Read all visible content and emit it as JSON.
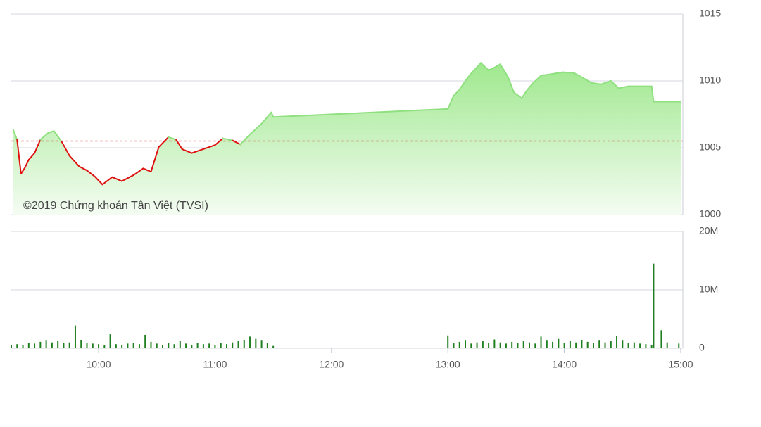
{
  "chart_data": [
    {
      "type": "line",
      "annotation": "©2019 Chứng khoán Tân Việt (TVSI)",
      "x": [
        "09:16",
        "09:18",
        "09:20",
        "09:22",
        "09:24",
        "09:27",
        "09:30",
        "09:34",
        "09:37",
        "09:41",
        "09:45",
        "09:50",
        "09:54",
        "09:58",
        "10:02",
        "10:07",
        "10:12",
        "10:18",
        "10:23",
        "10:27",
        "10:31",
        "10:36",
        "10:40",
        "10:43",
        "10:48",
        "10:55",
        "11:00",
        "11:04",
        "11:09",
        "11:13",
        "11:18",
        "11:24",
        "11:29",
        "11:30",
        "13:00",
        "13:03",
        "13:06",
        "13:10",
        "13:12",
        "13:17",
        "13:21",
        "13:24",
        "13:27",
        "13:31",
        "13:34",
        "13:38",
        "13:41",
        "13:44",
        "13:48",
        "13:53",
        "13:59",
        "14:05",
        "14:10",
        "14:14",
        "14:19",
        "14:24",
        "14:28",
        "14:33",
        "14:45",
        "14:46",
        "15:00"
      ],
      "values": [
        1006.35,
        1005.6,
        1003.05,
        1003.5,
        1004.1,
        1004.6,
        1005.6,
        1006.1,
        1006.25,
        1005.45,
        1004.4,
        1003.6,
        1003.3,
        1002.85,
        1002.25,
        1002.8,
        1002.5,
        1002.95,
        1003.45,
        1003.2,
        1005.05,
        1005.8,
        1005.6,
        1004.9,
        1004.6,
        1004.95,
        1005.2,
        1005.7,
        1005.55,
        1005.25,
        1006.0,
        1006.8,
        1007.65,
        1007.3,
        1007.9,
        1008.9,
        1009.35,
        1010.2,
        1010.55,
        1011.35,
        1010.8,
        1011.0,
        1011.25,
        1010.3,
        1009.15,
        1008.7,
        1009.35,
        1009.85,
        1010.4,
        1010.5,
        1010.65,
        1010.6,
        1010.2,
        1009.85,
        1009.75,
        1010.0,
        1009.45,
        1009.6,
        1009.6,
        1008.45,
        1008.45
      ],
      "reference": 1005.5,
      "reference_color": "#d11a1a",
      "up_color": "#8fe07f",
      "down_color": "#e01010",
      "xlim": [
        "09:15",
        "15:00"
      ],
      "ylim": [
        1000,
        1015
      ],
      "yticks": [
        1000,
        1005,
        1010,
        1015
      ],
      "grid": true
    },
    {
      "type": "bar",
      "x": [
        "09:15",
        "09:18",
        "09:21",
        "09:24",
        "09:27",
        "09:30",
        "09:33",
        "09:36",
        "09:39",
        "09:42",
        "09:45",
        "09:48",
        "09:51",
        "09:54",
        "09:57",
        "10:00",
        "10:03",
        "10:06",
        "10:09",
        "10:12",
        "10:15",
        "10:18",
        "10:21",
        "10:24",
        "10:27",
        "10:30",
        "10:33",
        "10:36",
        "10:39",
        "10:42",
        "10:45",
        "10:48",
        "10:51",
        "10:54",
        "10:57",
        "11:00",
        "11:03",
        "11:06",
        "11:09",
        "11:12",
        "11:15",
        "11:18",
        "11:21",
        "11:24",
        "11:27",
        "11:30",
        "13:00",
        "13:03",
        "13:06",
        "13:09",
        "13:12",
        "13:15",
        "13:18",
        "13:21",
        "13:24",
        "13:27",
        "13:30",
        "13:33",
        "13:36",
        "13:39",
        "13:42",
        "13:45",
        "13:48",
        "13:51",
        "13:54",
        "13:57",
        "14:00",
        "14:03",
        "14:06",
        "14:09",
        "14:12",
        "14:15",
        "14:18",
        "14:21",
        "14:24",
        "14:27",
        "14:30",
        "14:33",
        "14:36",
        "14:39",
        "14:42",
        "14:45",
        "14:46",
        "14:50",
        "14:53",
        "14:59"
      ],
      "values": [
        500000,
        700000,
        600000,
        900000,
        800000,
        1100000,
        1300000,
        1000000,
        1200000,
        900000,
        1000000,
        3900000,
        1400000,
        900000,
        800000,
        700000,
        600000,
        2400000,
        700000,
        600000,
        800000,
        900000,
        700000,
        2300000,
        1100000,
        800000,
        600000,
        900000,
        700000,
        1200000,
        800000,
        600000,
        900000,
        700000,
        800000,
        600000,
        900000,
        700000,
        1000000,
        1200000,
        1400000,
        2000000,
        1600000,
        1300000,
        900000,
        400000,
        2200000,
        900000,
        1100000,
        1300000,
        800000,
        1000000,
        1200000,
        900000,
        1500000,
        1000000,
        800000,
        1100000,
        900000,
        1200000,
        1000000,
        800000,
        2000000,
        1300000,
        1100000,
        1600000,
        900000,
        1200000,
        1000000,
        1400000,
        1100000,
        900000,
        1300000,
        1000000,
        1200000,
        2100000,
        1300000,
        900000,
        1000000,
        800000,
        700000,
        500000,
        14500000,
        3100000,
        1000000,
        800000
      ],
      "color": "#1f7f1f",
      "xlim": [
        "09:15",
        "15:00"
      ],
      "xticks": [
        "10:00",
        "11:00",
        "12:00",
        "13:00",
        "14:00",
        "15:00"
      ],
      "ylim": [
        0,
        20000000
      ],
      "yticks": [
        0,
        {
          "value": 10000000,
          "label": "10M"
        },
        {
          "value": 20000000,
          "label": "20M"
        }
      ],
      "grid": true
    }
  ]
}
